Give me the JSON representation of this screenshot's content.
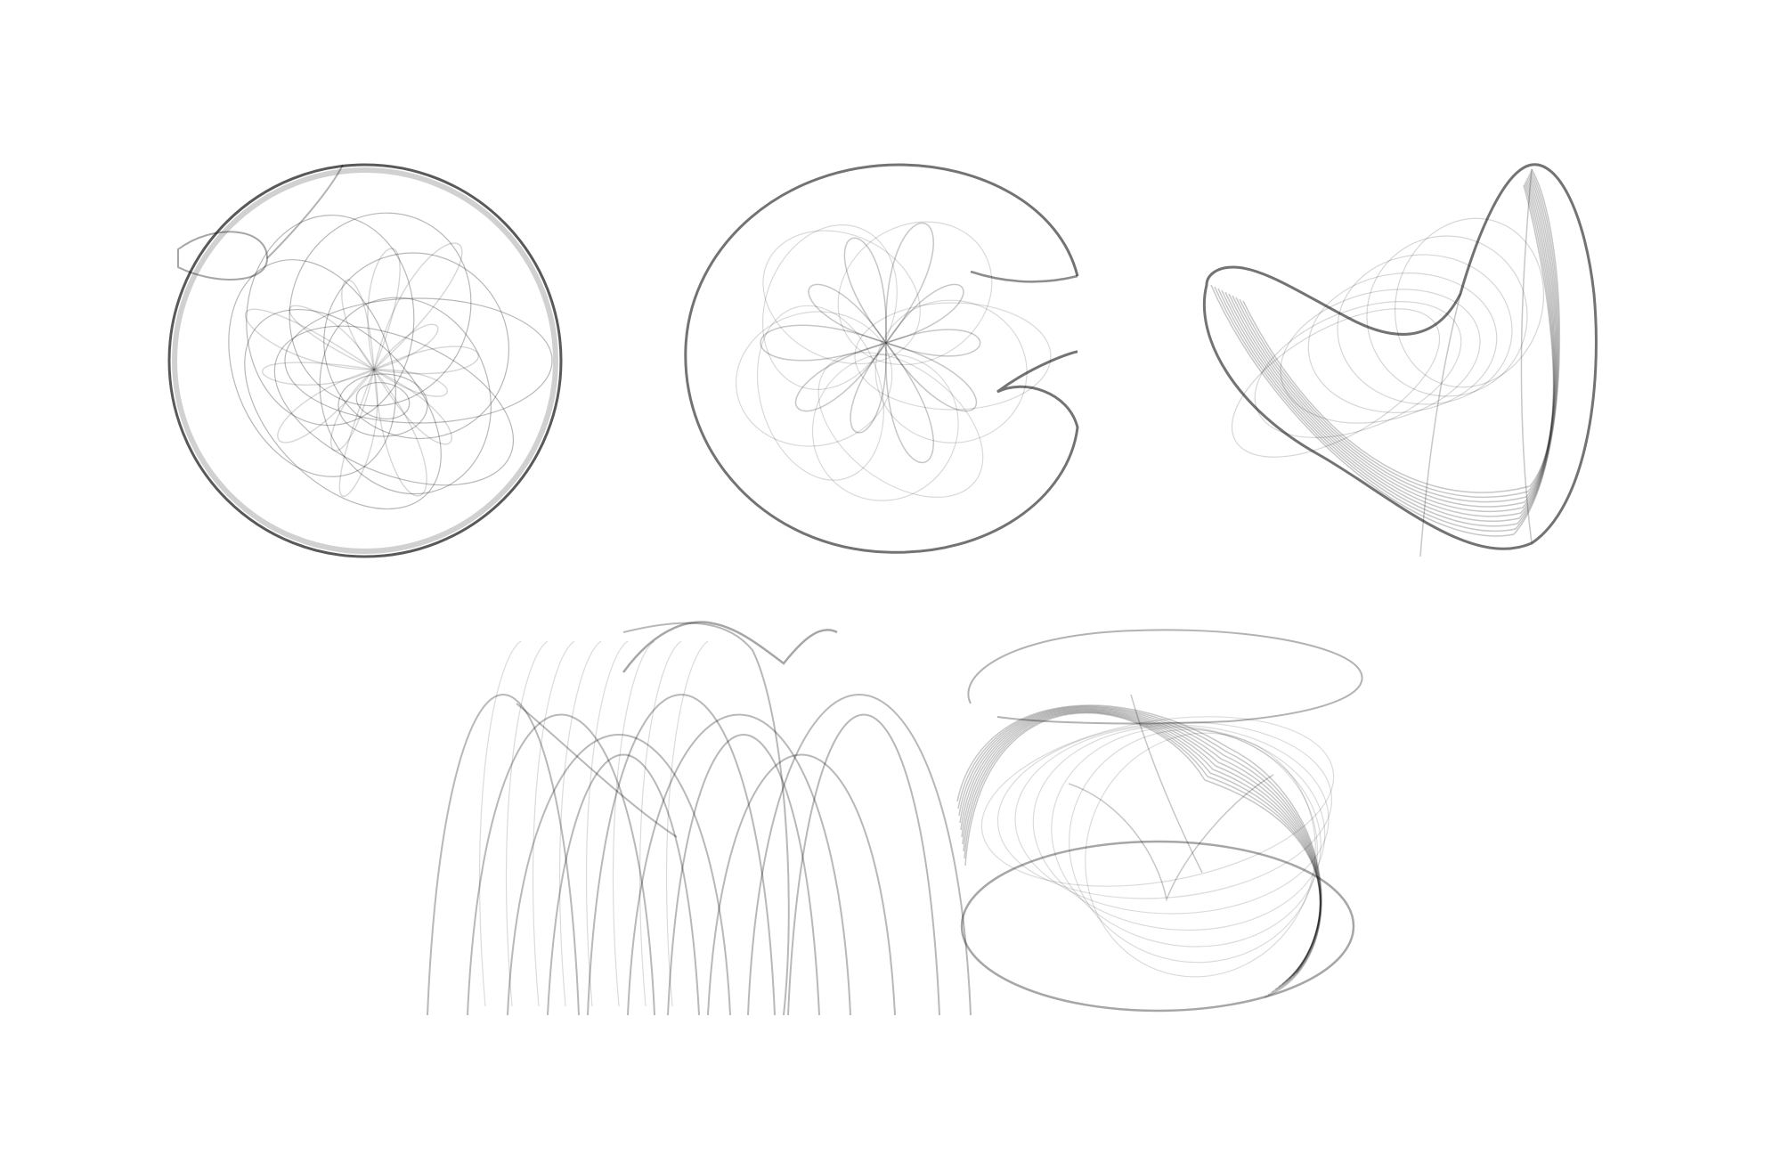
{
  "background_color": "#ffffff",
  "ink_color": "#000000",
  "figures": [
    {
      "id": "sphere",
      "shape": "sphere-attractor",
      "row": 1,
      "position_in_row": 1
    },
    {
      "id": "pacman",
      "shape": "notched-disc-attractor",
      "row": 1,
      "position_in_row": 2
    },
    {
      "id": "bowl",
      "shape": "bowl-attractor",
      "row": 1,
      "position_in_row": 3
    },
    {
      "id": "arches",
      "shape": "arches-attractor",
      "row": 2,
      "position_in_row": 1
    },
    {
      "id": "twisted",
      "shape": "twisted-ring-attractor",
      "row": 2,
      "position_in_row": 2
    }
  ]
}
